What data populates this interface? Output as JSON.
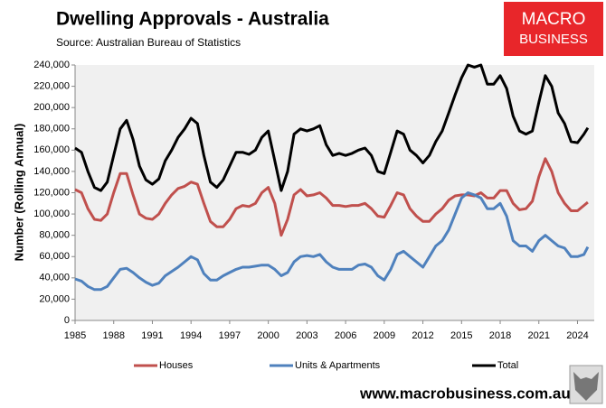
{
  "chart_data": {
    "type": "line",
    "title": "Dwelling Approvals - Australia",
    "subtitle": "Source: Australian Bureau of Statistics",
    "y_label": "Number (Rolling Annual)",
    "logo": [
      "MACRO",
      "BUSINESS"
    ],
    "footer": "www.macrobusiness.com.au",
    "x": [
      1985,
      1985.5,
      1986,
      1986.5,
      1987,
      1987.5,
      1988,
      1988.5,
      1989,
      1989.5,
      1990,
      1990.5,
      1991,
      1991.5,
      1992,
      1992.5,
      1993,
      1993.5,
      1994,
      1994.5,
      1995,
      1995.5,
      1996,
      1996.5,
      1997,
      1997.5,
      1998,
      1998.5,
      1999,
      1999.5,
      2000,
      2000.5,
      2001,
      2001.5,
      2002,
      2002.5,
      2003,
      2003.5,
      2004,
      2004.5,
      2005,
      2005.5,
      2006,
      2006.5,
      2007,
      2007.5,
      2008,
      2008.5,
      2009,
      2009.5,
      2010,
      2010.5,
      2011,
      2011.5,
      2012,
      2012.5,
      2013,
      2013.5,
      2014,
      2014.5,
      2015,
      2015.5,
      2016,
      2016.5,
      2017,
      2017.5,
      2018,
      2018.5,
      2019,
      2019.5,
      2020,
      2020.5,
      2021,
      2021.5,
      2022,
      2022.5,
      2023,
      2023.5,
      2024,
      2024.5,
      2024.8
    ],
    "series": [
      {
        "name": "Houses",
        "color": "#c0504d",
        "values": [
          123000,
          120000,
          105000,
          95000,
          94000,
          100000,
          120000,
          138000,
          138000,
          118000,
          100000,
          96000,
          95000,
          100000,
          110000,
          118000,
          124000,
          126000,
          130000,
          128000,
          110000,
          93000,
          88000,
          88000,
          95000,
          105000,
          108000,
          107000,
          110000,
          120000,
          125000,
          110000,
          80000,
          95000,
          118000,
          123000,
          117000,
          118000,
          120000,
          115000,
          108000,
          108000,
          107000,
          108000,
          108000,
          110000,
          105000,
          98000,
          97000,
          108000,
          120000,
          118000,
          105000,
          98000,
          93000,
          93000,
          100000,
          105000,
          113000,
          117000,
          118000,
          118000,
          117000,
          120000,
          115000,
          115000,
          122000,
          122000,
          110000,
          104000,
          105000,
          112000,
          135000,
          152000,
          140000,
          120000,
          110000,
          103000,
          103000,
          108000,
          111000
        ]
      },
      {
        "name": "Units & Apartments",
        "color": "#4f81bd",
        "values": [
          39000,
          37000,
          32000,
          29000,
          29000,
          32000,
          40000,
          48000,
          49000,
          45000,
          40000,
          36000,
          33000,
          35000,
          42000,
          46000,
          50000,
          55000,
          60000,
          57000,
          44000,
          38000,
          38000,
          42000,
          45000,
          48000,
          50000,
          50000,
          51000,
          52000,
          52000,
          48000,
          42000,
          45000,
          55000,
          60000,
          61000,
          60000,
          62000,
          55000,
          50000,
          48000,
          48000,
          48000,
          52000,
          53000,
          50000,
          42000,
          38000,
          48000,
          62000,
          65000,
          60000,
          55000,
          50000,
          60000,
          70000,
          75000,
          85000,
          100000,
          115000,
          120000,
          118000,
          115000,
          105000,
          105000,
          110000,
          98000,
          75000,
          70000,
          70000,
          65000,
          75000,
          80000,
          75000,
          70000,
          68000,
          60000,
          60000,
          62000,
          69000
        ]
      },
      {
        "name": "Total",
        "color": "#000000",
        "values": [
          162000,
          158000,
          140000,
          125000,
          122000,
          130000,
          155000,
          180000,
          188000,
          170000,
          145000,
          132000,
          128000,
          133000,
          150000,
          160000,
          172000,
          180000,
          190000,
          185000,
          155000,
          130000,
          125000,
          132000,
          145000,
          158000,
          158000,
          156000,
          160000,
          172000,
          178000,
          150000,
          122000,
          140000,
          175000,
          180000,
          178000,
          180000,
          183000,
          165000,
          155000,
          157000,
          155000,
          157000,
          160000,
          162000,
          155000,
          140000,
          138000,
          158000,
          178000,
          175000,
          160000,
          155000,
          148000,
          155000,
          168000,
          178000,
          195000,
          212000,
          228000,
          240000,
          238000,
          240000,
          222000,
          222000,
          230000,
          218000,
          192000,
          178000,
          175000,
          178000,
          205000,
          230000,
          220000,
          195000,
          185000,
          168000,
          167000,
          175000,
          181000
        ]
      }
    ],
    "xlim": [
      1985,
      2025.3
    ],
    "xticks": [
      1985,
      1988,
      1991,
      1994,
      1997,
      2000,
      2003,
      2006,
      2009,
      2012,
      2015,
      2018,
      2021,
      2024
    ],
    "ylim": [
      0,
      240000
    ],
    "yticks": [
      0,
      {
        "value": 20000,
        "label": "20,000"
      },
      {
        "value": 40000,
        "label": "40,000"
      },
      {
        "value": 60000,
        "label": "60,000"
      },
      {
        "value": 80000,
        "label": "80,000"
      },
      {
        "value": 100000,
        "label": "100,000"
      },
      {
        "value": 120000,
        "label": "120,000"
      },
      {
        "value": 140000,
        "label": "140,000"
      },
      {
        "value": 160000,
        "label": "160,000"
      },
      {
        "value": 180000,
        "label": "180,000"
      },
      {
        "value": 200000,
        "label": "200,000"
      },
      {
        "value": 220000,
        "label": "220,000"
      },
      {
        "value": 240000,
        "label": "240,000"
      }
    ],
    "grid": false
  }
}
